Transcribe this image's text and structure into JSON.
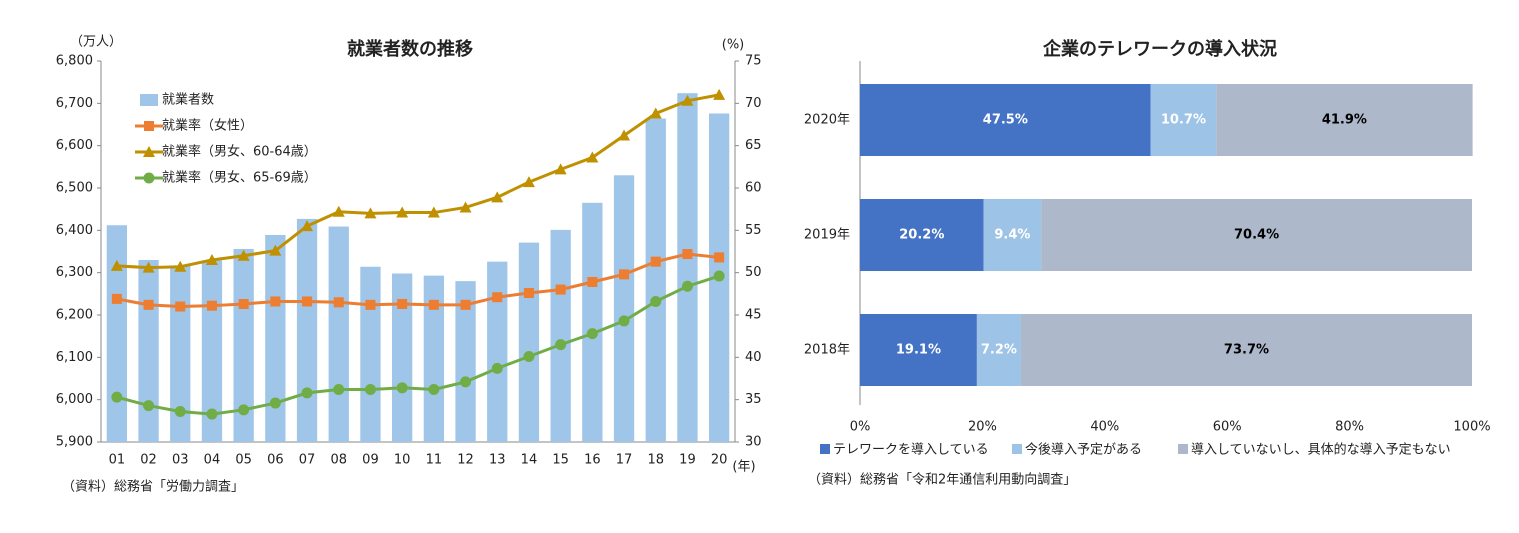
{
  "chart_data": [
    {
      "type": "combo",
      "title": "就業者数の推移",
      "y_label": "（万人）",
      "y2_label": "(%)",
      "x_label": "(年)",
      "note": "（資料）総務省「労働力調査」",
      "categories": [
        "01",
        "02",
        "03",
        "04",
        "05",
        "06",
        "07",
        "08",
        "09",
        "10",
        "11",
        "12",
        "13",
        "14",
        "15",
        "16",
        "17",
        "18",
        "19",
        "20"
      ],
      "ylim": [
        5900,
        6800
      ],
      "yticks": [
        {
          "value": 5900,
          "label": "5,900"
        },
        {
          "value": 6000,
          "label": "6,000"
        },
        {
          "value": 6100,
          "label": "6,100"
        },
        {
          "value": 6200,
          "label": "6,200"
        },
        {
          "value": 6300,
          "label": "6,300"
        },
        {
          "value": 6400,
          "label": "6,400"
        },
        {
          "value": 6500,
          "label": "6,500"
        },
        {
          "value": 6600,
          "label": "6,600"
        },
        {
          "value": 6700,
          "label": "6,700"
        },
        {
          "value": 6800,
          "label": "6,800"
        }
      ],
      "y2lim": [
        30,
        75
      ],
      "y2ticks": [
        30,
        35,
        40,
        45,
        50,
        55,
        60,
        65,
        70,
        75
      ],
      "legend": "upper left",
      "series": [
        {
          "name": "就業者数",
          "kind": "bar",
          "color": "#9fc5e8",
          "values": [
            6412,
            6330,
            6316,
            6329,
            6356,
            6389,
            6427,
            6409,
            6314,
            6298,
            6293,
            6280,
            6326,
            6371,
            6401,
            6465,
            6530,
            6664,
            6724,
            6676
          ]
        },
        {
          "name": "就業率（女性）",
          "kind": "line",
          "marker": "square",
          "axis": "y2",
          "color": "#ed7d31",
          "values": [
            46.9,
            46.2,
            46.0,
            46.1,
            46.3,
            46.6,
            46.6,
            46.5,
            46.2,
            46.3,
            46.2,
            46.2,
            47.1,
            47.6,
            48.0,
            48.9,
            49.8,
            51.3,
            52.2,
            51.8
          ]
        },
        {
          "name": "就業率（男女、60-64歳）",
          "kind": "line",
          "marker": "triangle",
          "axis": "y2",
          "color": "#bf9000",
          "values": [
            50.8,
            50.6,
            50.7,
            51.5,
            52.0,
            52.6,
            55.5,
            57.2,
            57.0,
            57.1,
            57.1,
            57.7,
            58.9,
            60.7,
            62.2,
            63.6,
            66.2,
            68.8,
            70.3,
            71.0
          ]
        },
        {
          "name": "就業率（男女、65-69歳）",
          "kind": "line",
          "marker": "circle",
          "axis": "y2",
          "color": "#70ad47",
          "values": [
            35.3,
            34.3,
            33.6,
            33.3,
            33.8,
            34.6,
            35.8,
            36.2,
            36.2,
            36.4,
            36.2,
            37.1,
            38.7,
            40.1,
            41.5,
            42.8,
            44.3,
            46.6,
            48.4,
            49.6
          ]
        }
      ]
    },
    {
      "type": "stacked_hbar",
      "title": "企業のテレワークの導入状況",
      "note": "（資料）総務省「令和2年通信利用動向調査」",
      "categories": [
        "2020年",
        "2019年",
        "2018年"
      ],
      "xlim": [
        0,
        100
      ],
      "xticks": [
        {
          "value": 0,
          "label": "0%"
        },
        {
          "value": 20,
          "label": "20%"
        },
        {
          "value": 40,
          "label": "40%"
        },
        {
          "value": 60,
          "label": "60%"
        },
        {
          "value": 80,
          "label": "80%"
        },
        {
          "value": 100,
          "label": "100%"
        }
      ],
      "legend": "bottom",
      "series": [
        {
          "name": "テレワークを導入している",
          "color": "#4472c4",
          "label_color": "#ffffff",
          "values": [
            47.5,
            20.2,
            19.1
          ],
          "value_labels": [
            "47.5%",
            "20.2%",
            "19.1%"
          ]
        },
        {
          "name": "今後導入予定がある",
          "color": "#9dc3e6",
          "label_color": "#ffffff",
          "values": [
            10.7,
            9.4,
            7.2
          ],
          "value_labels": [
            "10.7%",
            "9.4%",
            "7.2%"
          ]
        },
        {
          "name": "導入していないし、具体的な導入予定もない",
          "color": "#adb9ca",
          "label_color": "#000000",
          "values": [
            41.9,
            70.4,
            73.7
          ],
          "value_labels": [
            "41.9%",
            "70.4%",
            "73.7%"
          ]
        }
      ]
    }
  ]
}
